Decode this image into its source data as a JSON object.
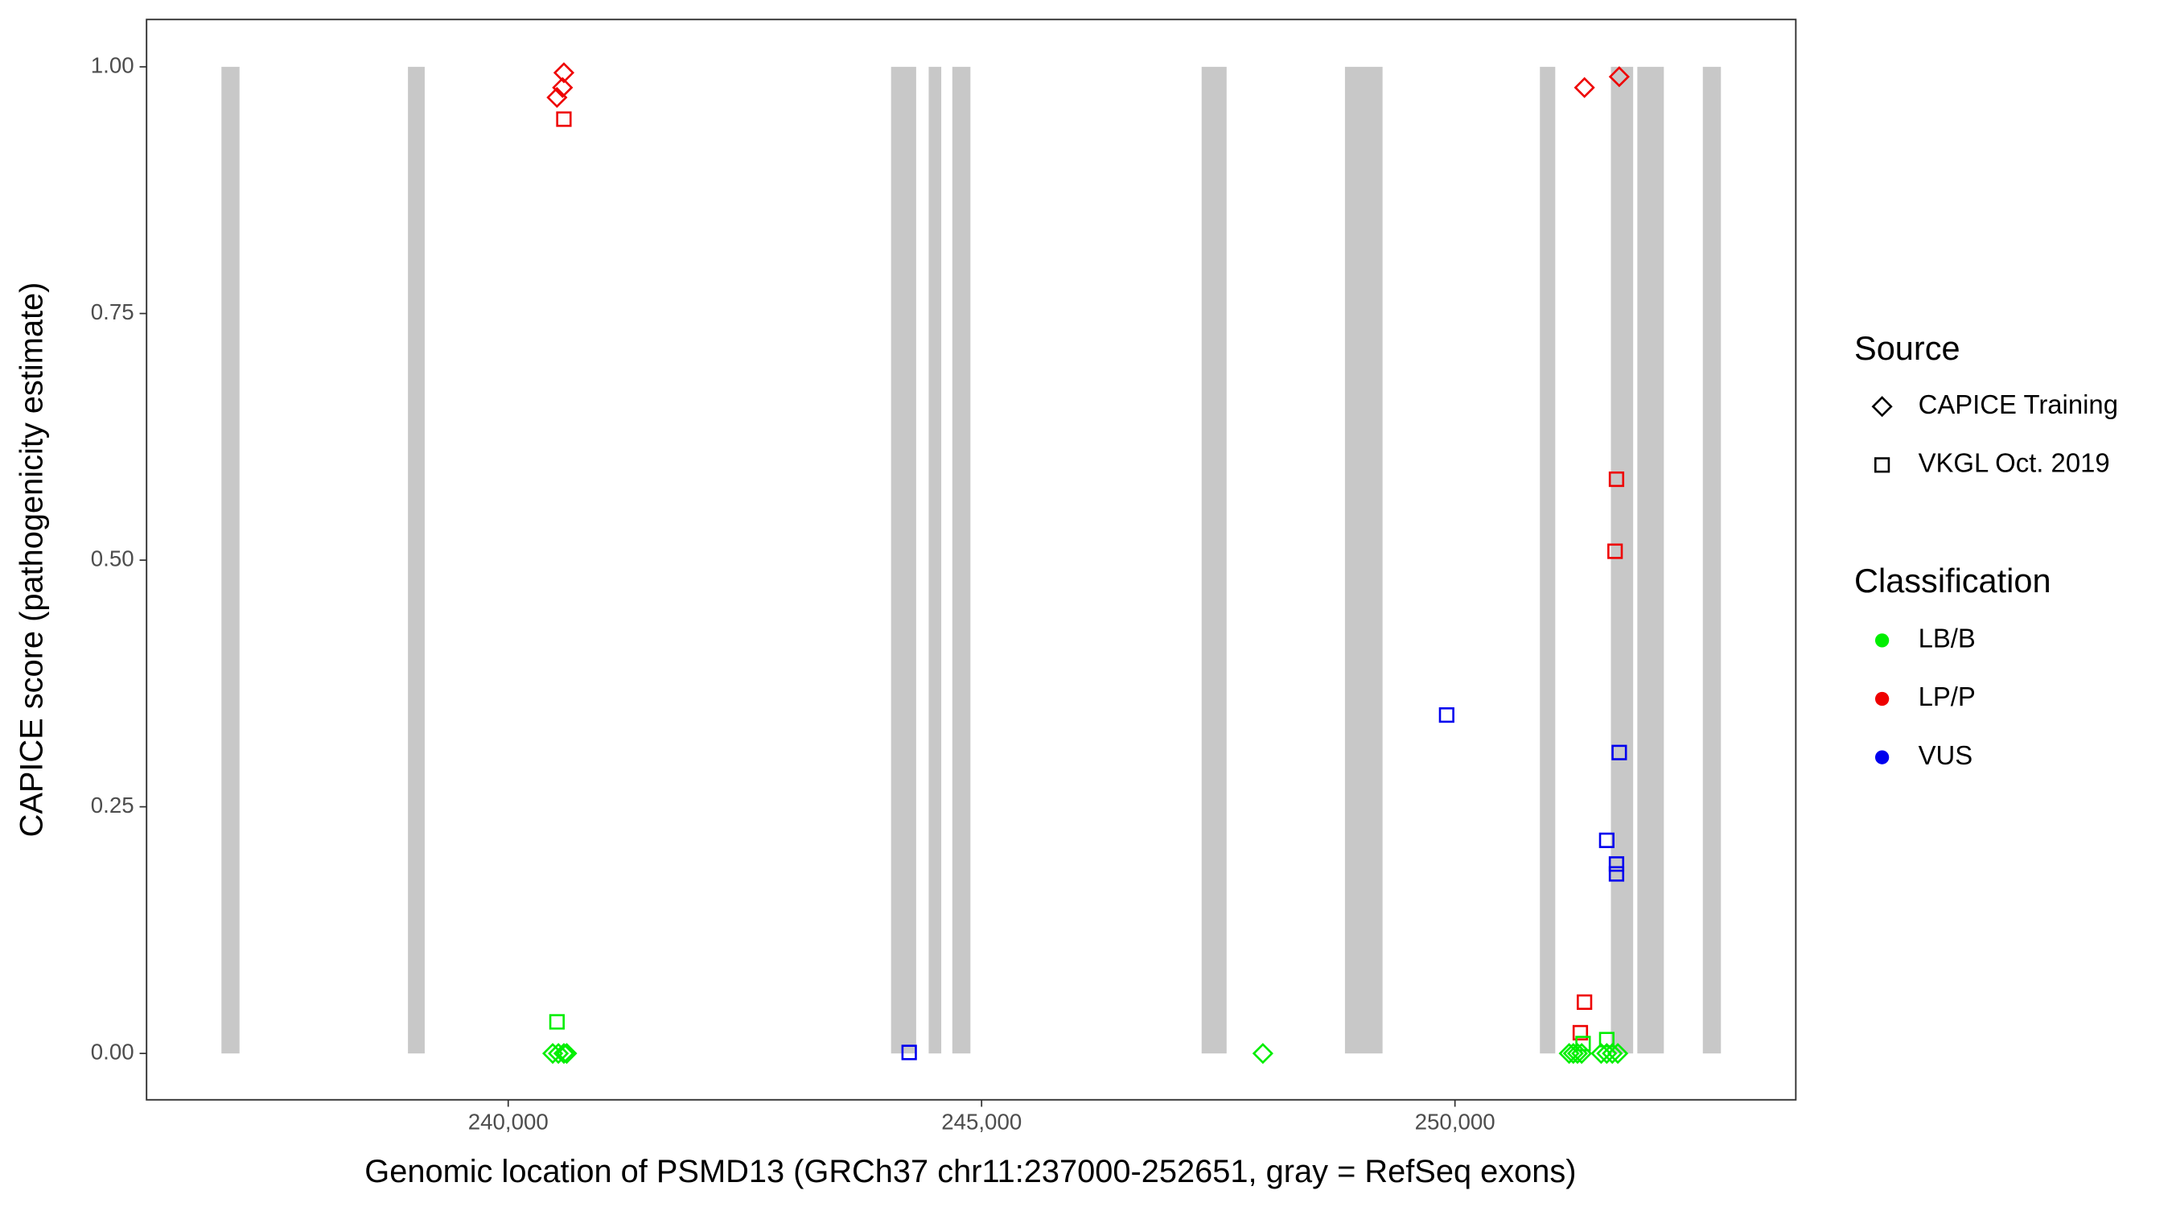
{
  "chart_data": {
    "type": "scatter",
    "xlabel": "Genomic location of PSMD13 (GRCh37 chr11:237000-252651, gray = RefSeq exons)",
    "ylabel": "CAPICE score (pathogenicity estimate)",
    "xlim": [
      236180,
      253600
    ],
    "ylim": [
      -0.047,
      1.048
    ],
    "xticks": [
      {
        "value": 240000,
        "label": "240,000"
      },
      {
        "value": 245000,
        "label": "245,000"
      },
      {
        "value": 250000,
        "label": "250,000"
      }
    ],
    "yticks": [
      {
        "value": 0,
        "label": "0.00"
      },
      {
        "value": 0.25,
        "label": "0.25"
      },
      {
        "value": 0.5,
        "label": "0.50"
      },
      {
        "value": 0.75,
        "label": "0.75"
      },
      {
        "value": 1,
        "label": "1.00"
      }
    ],
    "exons": {
      "color": "#c8c8c8",
      "y": [
        0,
        1
      ],
      "ranges": [
        [
          236971,
          237162
        ],
        [
          238941,
          239118
        ],
        [
          244044,
          244309
        ],
        [
          244441,
          244574
        ],
        [
          244691,
          244882
        ],
        [
          247324,
          247588
        ],
        [
          248838,
          249235
        ],
        [
          250897,
          251059
        ],
        [
          251647,
          251882
        ],
        [
          251926,
          252206
        ],
        [
          252618,
          252809
        ]
      ]
    },
    "source_legend": {
      "title": "Source",
      "items": [
        {
          "name": "CAPICE Training",
          "shape": "diamond"
        },
        {
          "name": "VKGL Oct. 2019",
          "shape": "square"
        }
      ]
    },
    "classification_legend": {
      "title": "Classification",
      "items": [
        {
          "name": "LB/B",
          "color": "#00ee00"
        },
        {
          "name": "LP/P",
          "color": "#ee0000"
        },
        {
          "name": "VUS",
          "color": "#0000ee"
        }
      ]
    },
    "series": [
      {
        "shape": "diamond",
        "color": "#ee0000",
        "x": [
          240588,
          240574,
          240515,
          251368,
          251735
        ],
        "y": [
          0.994,
          0.979,
          0.969,
          0.979,
          0.99
        ]
      },
      {
        "shape": "square",
        "color": "#ee0000",
        "x": [
          240588,
          251706,
          251691,
          251368,
          251324
        ],
        "y": [
          0.947,
          0.582,
          0.509,
          0.052,
          0.021
        ]
      },
      {
        "shape": "square",
        "color": "#0000ee",
        "x": [
          244235,
          249912,
          251735,
          251603,
          251706,
          251706
        ],
        "y": [
          0.001,
          0.343,
          0.305,
          0.216,
          0.192,
          0.182
        ]
      },
      {
        "shape": "square",
        "color": "#00ee00",
        "x": [
          240515,
          251353,
          251603
        ],
        "y": [
          0.032,
          0.01,
          0.014
        ]
      },
      {
        "shape": "diamond",
        "color": "#00ee00",
        "x": [
          240470,
          240530,
          240588,
          240618,
          247971,
          251206,
          251250,
          251294,
          251338,
          251544,
          251603,
          251662,
          251720
        ],
        "y": [
          0,
          0,
          0,
          0,
          0,
          0,
          0,
          0,
          0,
          0,
          0,
          0,
          0
        ]
      }
    ]
  }
}
